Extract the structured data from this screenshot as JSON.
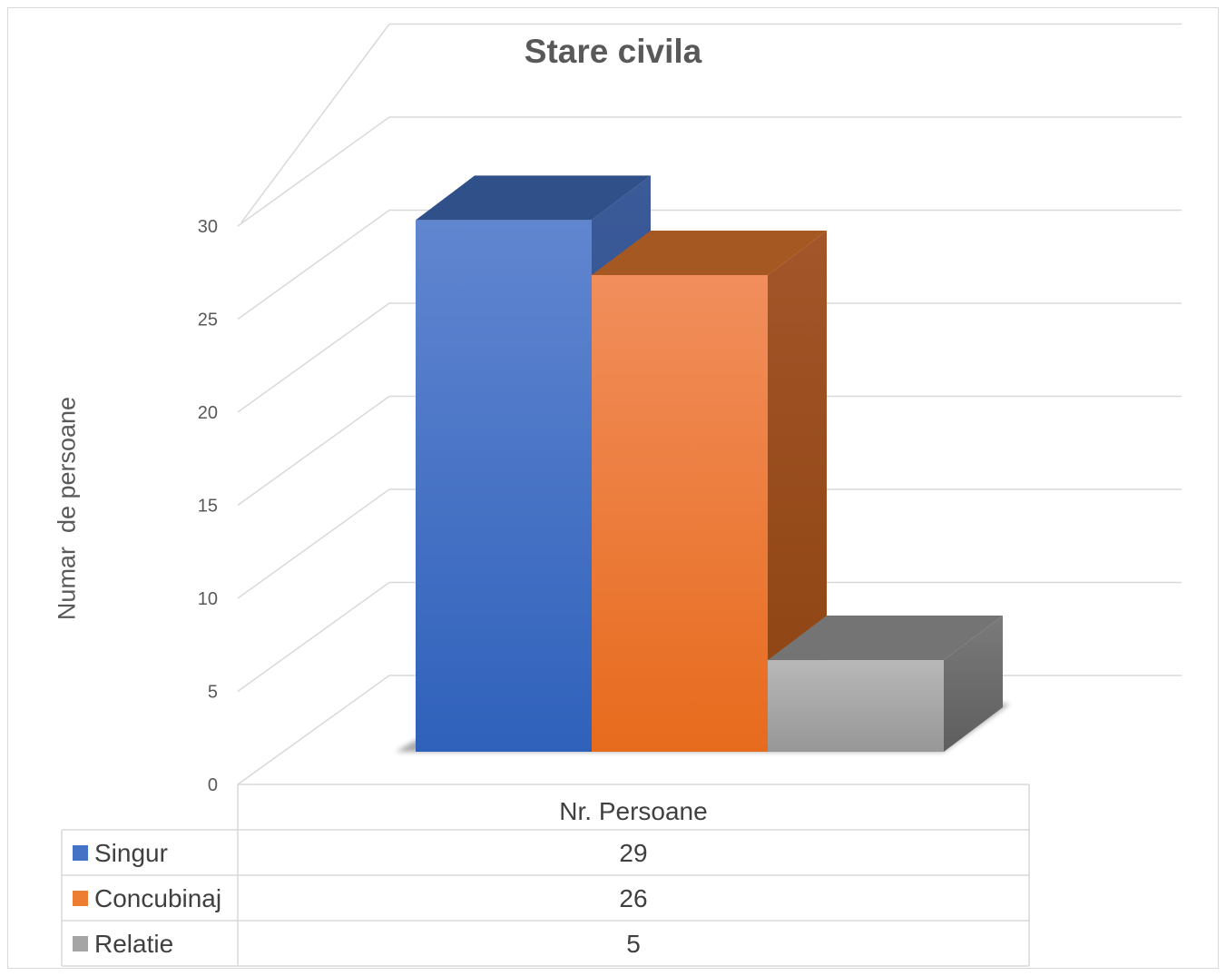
{
  "chart_data": {
    "type": "bar",
    "title": "Stare civila",
    "xlabel": "",
    "ylabel": "Numar  de persoane",
    "ylim": [
      0,
      30
    ],
    "yticks": [
      0,
      5,
      10,
      15,
      20,
      25,
      30
    ],
    "grid": true,
    "three_d": true,
    "categories": [
      "Nr. Persoane"
    ],
    "series": [
      {
        "name": "Singur",
        "values": [
          29
        ],
        "color": "#4472c4"
      },
      {
        "name": "Concubinaj",
        "values": [
          26
        ],
        "color": "#ed7d31"
      },
      {
        "name": "Relatie",
        "values": [
          5
        ],
        "color": "#a5a5a5"
      }
    ],
    "data_table": true
  }
}
